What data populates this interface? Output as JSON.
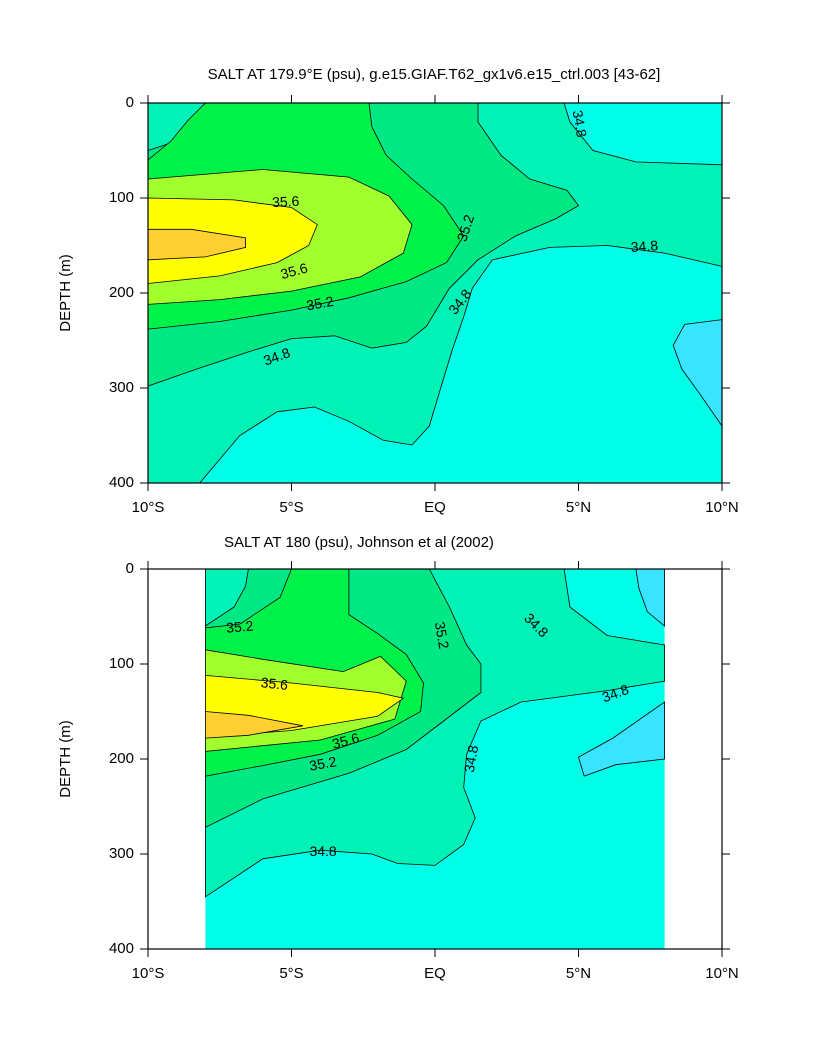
{
  "chart_data": [
    {
      "type": "contour",
      "title": "SALT AT 179.9°E (psu), g.e15.GIAF.T62_gx1v6.e15_ctrl.003 [43-62]",
      "ylabel": "DEPTH (m)",
      "xlim": [
        -10,
        10
      ],
      "xticks": [
        {
          "value": -10,
          "label": "10°S"
        },
        {
          "value": -5,
          "label": "5°S"
        },
        {
          "value": 0,
          "label": "EQ"
        },
        {
          "value": 5,
          "label": "5°N"
        },
        {
          "value": 10,
          "label": "10°N"
        }
      ],
      "ylim": [
        400,
        0
      ],
      "yticks": [
        0,
        100,
        200,
        300,
        400
      ],
      "levels": [
        34.6,
        34.8,
        35.0,
        35.2,
        35.4,
        35.6,
        35.8
      ],
      "colors": [
        "#38e4ff",
        "#00ffe6",
        "#00f2b6",
        "#00e884",
        "#00f24a",
        "#a2ff2e",
        "#ffff00",
        "#ffd030"
      ],
      "contour_labels": [
        35.6,
        35.6,
        35.2,
        35.2,
        34.8,
        34.8,
        34.8,
        34.8
      ]
    },
    {
      "type": "contour",
      "title": "SALT AT 180 (psu), Johnson et al (2002)",
      "ylabel": "DEPTH (m)",
      "xlim": [
        -10,
        10
      ],
      "xticks": [
        {
          "value": -10,
          "label": "10°S"
        },
        {
          "value": -5,
          "label": "5°S"
        },
        {
          "value": 0,
          "label": "EQ"
        },
        {
          "value": 5,
          "label": "5°N"
        },
        {
          "value": 10,
          "label": "10°N"
        }
      ],
      "ylim": [
        400,
        0
      ],
      "yticks": [
        0,
        100,
        200,
        300,
        400
      ],
      "levels": [
        34.6,
        34.8,
        35.0,
        35.2,
        35.4,
        35.6,
        35.8
      ],
      "colors": [
        "#38e4ff",
        "#00ffe6",
        "#00f2b6",
        "#00e884",
        "#00f24a",
        "#a2ff2e",
        "#ffff00",
        "#ffd030"
      ],
      "contour_labels": [
        35.2,
        35.6,
        35.6,
        35.2,
        35.2,
        34.8,
        34.8,
        34.8,
        34.8
      ]
    }
  ]
}
